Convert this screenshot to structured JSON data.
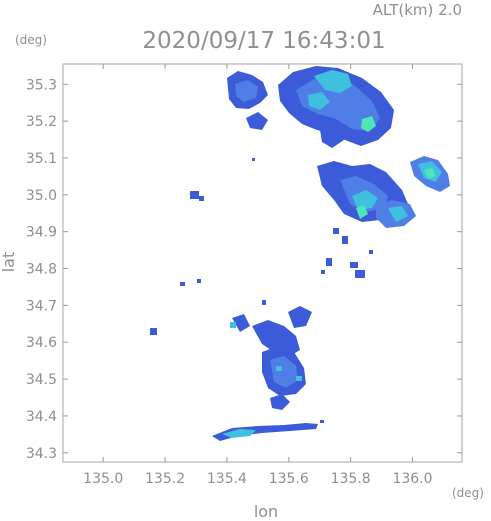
{
  "header": {
    "alt_label": "ALT(km) 2.0",
    "timestamp": "2020/09/17 16:43:01"
  },
  "y_axis": {
    "unit": "(deg)",
    "label": "lat",
    "ticks": [
      "35.3",
      "35.2",
      "35.1",
      "35.0",
      "34.9",
      "34.8",
      "34.7",
      "34.6",
      "34.5",
      "34.4",
      "34.3"
    ],
    "range": [
      34.275,
      35.355
    ]
  },
  "x_axis": {
    "unit": "(deg)",
    "label": "lon",
    "ticks": [
      "135.0",
      "135.2",
      "135.4",
      "135.6",
      "135.8",
      "136.0"
    ],
    "range": [
      134.87,
      136.16
    ]
  },
  "colors": {
    "frame": "#b3b3b3",
    "text": "#8f8f8f",
    "echo_weak": "#3b5bd9",
    "echo_mid": "#4f7fe6",
    "echo_strong": "#3fc0df",
    "echo_peak": "#4ee6b8"
  }
}
